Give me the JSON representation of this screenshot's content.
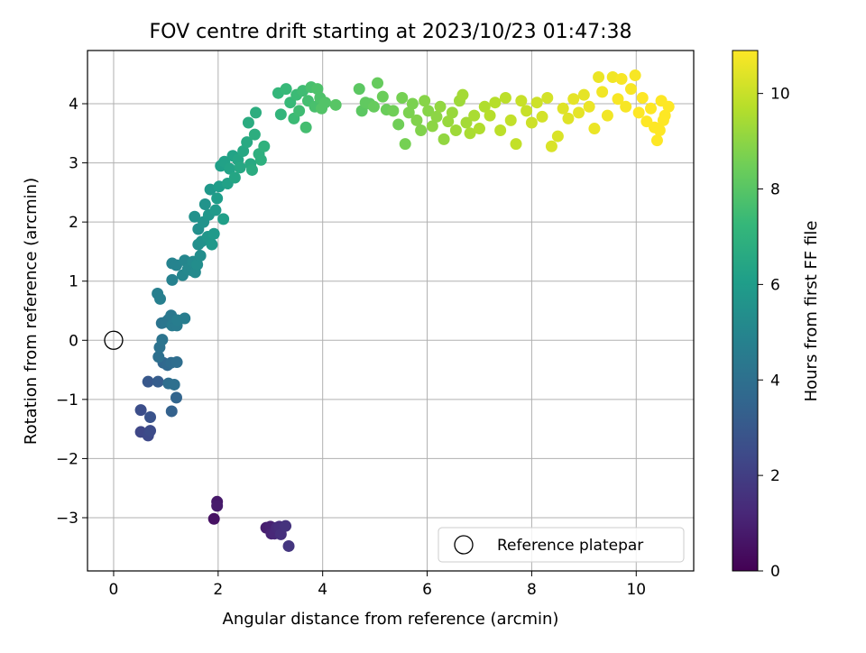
{
  "chart_data": {
    "type": "scatter",
    "title": "FOV centre drift starting at 2023/10/23 01:47:38",
    "xlabel": "Angular distance from reference (arcmin)",
    "ylabel": "Rotation from reference (arcmin)",
    "xlim": [
      -0.5,
      11.1
    ],
    "ylim": [
      -3.9,
      4.9
    ],
    "xticks": [
      0,
      2,
      4,
      6,
      8,
      10
    ],
    "yticks": [
      -3,
      -2,
      -1,
      0,
      1,
      2,
      3,
      4
    ],
    "grid": true,
    "legend": {
      "position": "lower-right",
      "entries": [
        "Reference platepar"
      ]
    },
    "colorbar": {
      "label": "Hours from first FF file",
      "range": [
        0,
        10.9
      ],
      "ticks": [
        0,
        2,
        4,
        6,
        8,
        10
      ],
      "colormap": "viridis",
      "stops": [
        "#440154",
        "#482878",
        "#3e4a89",
        "#31688e",
        "#26828e",
        "#1f9e89",
        "#35b779",
        "#6ece58",
        "#b5de2b",
        "#fde725"
      ]
    },
    "reference_point": {
      "x": 0,
      "y": 0,
      "label": "Reference platepar"
    },
    "series": [
      {
        "values_format": "[x_arcmin, y_arcmin, hours]",
        "points": [
          [
            1.92,
            -3.02,
            0.5
          ],
          [
            1.98,
            -2.73,
            0.7
          ],
          [
            1.98,
            -2.8,
            0.8
          ],
          [
            2.92,
            -3.17,
            0.9
          ],
          [
            3.0,
            -3.15,
            1.0
          ],
          [
            3.02,
            -3.27,
            1.1
          ],
          [
            3.08,
            -3.27,
            1.2
          ],
          [
            3.12,
            -3.17,
            1.3
          ],
          [
            3.17,
            -3.15,
            1.4
          ],
          [
            3.2,
            -3.28,
            1.5
          ],
          [
            3.29,
            -3.14,
            1.6
          ],
          [
            3.35,
            -3.48,
            1.7
          ],
          [
            0.52,
            -1.55,
            2.3
          ],
          [
            0.66,
            -1.61,
            2.4
          ],
          [
            0.7,
            -1.53,
            2.5
          ],
          [
            0.52,
            -1.18,
            2.6
          ],
          [
            0.7,
            -1.3,
            2.8
          ],
          [
            0.66,
            -0.7,
            3.0
          ],
          [
            0.85,
            -0.7,
            3.2
          ],
          [
            1.11,
            -1.2,
            3.4
          ],
          [
            1.2,
            -0.97,
            3.5
          ],
          [
            0.95,
            -0.38,
            3.6
          ],
          [
            1.03,
            -0.42,
            3.7
          ],
          [
            1.1,
            -0.38,
            3.8
          ],
          [
            1.21,
            -0.37,
            3.9
          ],
          [
            1.05,
            -0.73,
            3.9
          ],
          [
            1.16,
            -0.75,
            4.0
          ],
          [
            0.86,
            -0.28,
            4.0
          ],
          [
            0.88,
            -0.12,
            4.1
          ],
          [
            0.93,
            0.01,
            4.2
          ],
          [
            0.92,
            0.29,
            4.2
          ],
          [
            1.0,
            0.31,
            4.3
          ],
          [
            1.05,
            0.35,
            4.3
          ],
          [
            1.1,
            0.42,
            4.4
          ],
          [
            1.12,
            0.25,
            4.5
          ],
          [
            1.21,
            0.25,
            4.5
          ],
          [
            1.22,
            0.34,
            4.6
          ],
          [
            1.36,
            0.37,
            4.6
          ],
          [
            0.84,
            0.79,
            4.7
          ],
          [
            0.89,
            0.7,
            4.7
          ],
          [
            1.12,
            1.02,
            4.8
          ],
          [
            1.12,
            1.3,
            4.9
          ],
          [
            1.2,
            1.27,
            4.9
          ],
          [
            1.32,
            1.1,
            5.0
          ],
          [
            1.36,
            1.35,
            5.0
          ],
          [
            1.42,
            1.2,
            5.1
          ],
          [
            1.5,
            1.18,
            5.1
          ],
          [
            1.52,
            1.33,
            5.2
          ],
          [
            1.56,
            1.15,
            5.2
          ],
          [
            1.6,
            1.28,
            5.3
          ],
          [
            1.66,
            1.43,
            5.3
          ],
          [
            1.62,
            1.62,
            5.4
          ],
          [
            1.62,
            1.88,
            5.4
          ],
          [
            1.55,
            2.09,
            5.5
          ],
          [
            1.68,
            1.67,
            5.5
          ],
          [
            1.72,
            2.0,
            5.6
          ],
          [
            1.75,
            2.3,
            5.6
          ],
          [
            1.8,
            1.75,
            5.7
          ],
          [
            1.82,
            2.12,
            5.7
          ],
          [
            1.85,
            2.55,
            5.8
          ],
          [
            1.88,
            1.62,
            5.8
          ],
          [
            1.92,
            1.8,
            5.9
          ],
          [
            1.95,
            2.2,
            5.9
          ],
          [
            1.98,
            2.4,
            6.0
          ],
          [
            2.02,
            2.6,
            6.0
          ],
          [
            2.1,
            2.05,
            6.1
          ],
          [
            2.05,
            2.95,
            6.1
          ],
          [
            2.12,
            3.02,
            6.2
          ],
          [
            2.18,
            2.65,
            6.2
          ],
          [
            2.22,
            2.9,
            6.3
          ],
          [
            2.28,
            3.12,
            6.3
          ],
          [
            2.32,
            2.75,
            6.4
          ],
          [
            2.38,
            3.05,
            6.4
          ],
          [
            2.42,
            2.92,
            6.5
          ],
          [
            2.48,
            3.2,
            6.5
          ],
          [
            2.55,
            3.35,
            6.6
          ],
          [
            2.62,
            2.98,
            6.6
          ],
          [
            2.65,
            2.88,
            6.7
          ],
          [
            2.58,
            3.68,
            6.7
          ],
          [
            2.7,
            3.48,
            6.8
          ],
          [
            2.72,
            3.85,
            6.8
          ],
          [
            2.78,
            3.15,
            6.9
          ],
          [
            2.82,
            3.05,
            6.9
          ],
          [
            2.88,
            3.28,
            7.0
          ],
          [
            3.2,
            3.82,
            7.1
          ],
          [
            3.15,
            4.18,
            7.2
          ],
          [
            3.3,
            4.25,
            7.3
          ],
          [
            3.38,
            4.02,
            7.3
          ],
          [
            3.45,
            3.75,
            7.4
          ],
          [
            3.5,
            4.15,
            7.4
          ],
          [
            3.55,
            3.88,
            7.5
          ],
          [
            3.62,
            4.22,
            7.5
          ],
          [
            3.68,
            3.6,
            7.6
          ],
          [
            3.72,
            4.05,
            7.6
          ],
          [
            3.78,
            4.28,
            7.7
          ],
          [
            3.85,
            3.95,
            7.7
          ],
          [
            3.9,
            4.25,
            7.8
          ],
          [
            3.95,
            4.1,
            7.8
          ],
          [
            3.98,
            3.92,
            7.9
          ],
          [
            4.05,
            4.02,
            7.9
          ],
          [
            4.25,
            3.98,
            8.0
          ],
          [
            4.7,
            4.25,
            8.1
          ],
          [
            4.75,
            3.88,
            8.1
          ],
          [
            4.82,
            4.02,
            8.2
          ],
          [
            4.9,
            4.0,
            8.2
          ],
          [
            4.98,
            3.95,
            8.3
          ],
          [
            5.05,
            4.35,
            8.3
          ],
          [
            5.15,
            4.12,
            8.4
          ],
          [
            5.22,
            3.9,
            8.4
          ],
          [
            5.35,
            3.88,
            8.5
          ],
          [
            5.45,
            3.65,
            8.5
          ],
          [
            5.52,
            4.1,
            8.6
          ],
          [
            5.58,
            3.32,
            8.6
          ],
          [
            5.65,
            3.85,
            8.7
          ],
          [
            5.72,
            4.0,
            8.7
          ],
          [
            5.8,
            3.72,
            8.8
          ],
          [
            5.88,
            3.55,
            8.8
          ],
          [
            5.95,
            4.05,
            8.9
          ],
          [
            6.02,
            3.88,
            8.9
          ],
          [
            6.1,
            3.62,
            9.0
          ],
          [
            6.18,
            3.78,
            9.0
          ],
          [
            6.25,
            3.95,
            9.1
          ],
          [
            6.32,
            3.4,
            9.1
          ],
          [
            6.4,
            3.7,
            9.2
          ],
          [
            6.48,
            3.85,
            9.2
          ],
          [
            6.55,
            3.55,
            9.3
          ],
          [
            6.62,
            4.05,
            9.3
          ],
          [
            6.68,
            4.15,
            9.4
          ],
          [
            6.75,
            3.68,
            9.4
          ],
          [
            6.82,
            3.5,
            9.5
          ],
          [
            6.9,
            3.8,
            9.5
          ],
          [
            7.0,
            3.58,
            9.6
          ],
          [
            7.1,
            3.95,
            9.6
          ],
          [
            7.2,
            3.8,
            9.7
          ],
          [
            7.3,
            4.02,
            9.7
          ],
          [
            7.4,
            3.55,
            9.8
          ],
          [
            7.5,
            4.1,
            9.8
          ],
          [
            7.6,
            3.72,
            9.9
          ],
          [
            7.7,
            3.32,
            9.9
          ],
          [
            7.8,
            4.05,
            10.0
          ],
          [
            7.9,
            3.88,
            10.0
          ],
          [
            8.0,
            3.68,
            10.1
          ],
          [
            8.1,
            4.02,
            10.1
          ],
          [
            8.2,
            3.78,
            10.2
          ],
          [
            8.3,
            4.1,
            10.2
          ],
          [
            8.38,
            3.28,
            10.3
          ],
          [
            8.5,
            3.45,
            10.3
          ],
          [
            8.6,
            3.92,
            10.4
          ],
          [
            8.7,
            3.75,
            10.4
          ],
          [
            8.8,
            4.08,
            10.5
          ],
          [
            8.9,
            3.85,
            10.5
          ],
          [
            9.0,
            4.15,
            10.5
          ],
          [
            9.1,
            3.95,
            10.6
          ],
          [
            9.2,
            3.58,
            10.6
          ],
          [
            9.28,
            4.45,
            10.6
          ],
          [
            9.35,
            4.2,
            10.7
          ],
          [
            9.45,
            3.8,
            10.7
          ],
          [
            9.55,
            4.45,
            10.7
          ],
          [
            9.65,
            4.08,
            10.8
          ],
          [
            9.72,
            4.42,
            10.8
          ],
          [
            9.8,
            3.95,
            10.8
          ],
          [
            9.9,
            4.25,
            10.8
          ],
          [
            9.98,
            4.48,
            10.8
          ],
          [
            10.05,
            3.85,
            10.9
          ],
          [
            10.12,
            4.1,
            10.9
          ],
          [
            10.2,
            3.7,
            10.9
          ],
          [
            10.28,
            3.92,
            10.9
          ],
          [
            10.35,
            3.6,
            10.9
          ],
          [
            10.4,
            3.38,
            10.9
          ],
          [
            10.48,
            4.05,
            10.9
          ],
          [
            10.55,
            3.8,
            10.9
          ],
          [
            10.62,
            3.95,
            10.9
          ],
          [
            10.45,
            3.55,
            10.9
          ],
          [
            10.52,
            3.72,
            10.9
          ]
        ]
      }
    ]
  }
}
